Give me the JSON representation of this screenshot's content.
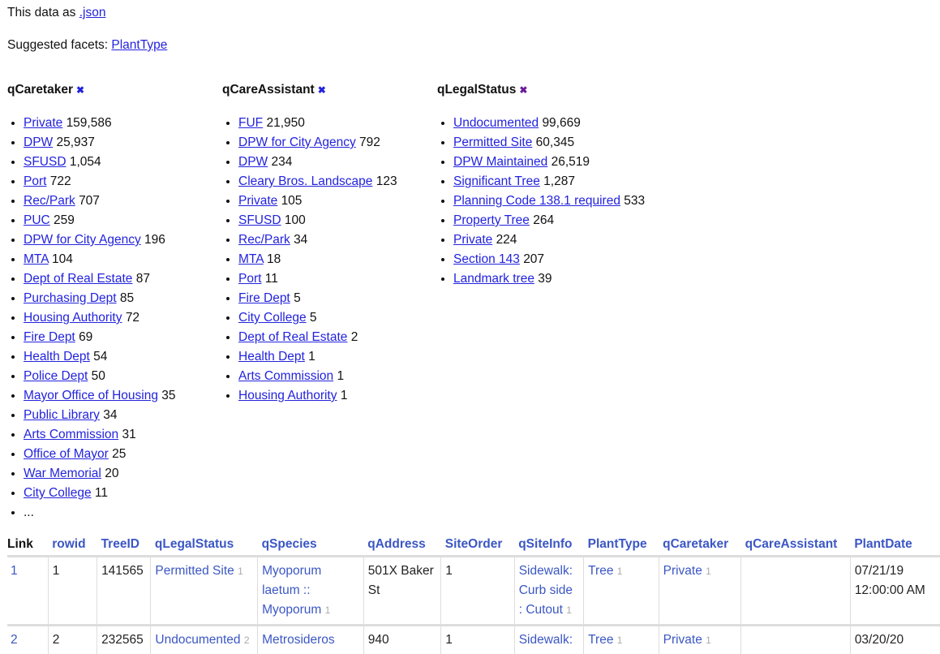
{
  "header": {
    "json_prefix": "This data as ",
    "json_link": ".json",
    "facets_prefix": "Suggested facets: ",
    "facet_link": "PlantType"
  },
  "facets": [
    {
      "title": "qCaretaker",
      "close_color": "#2323dd",
      "items": [
        [
          "Private",
          "159,586"
        ],
        [
          "DPW",
          "25,937"
        ],
        [
          "SFUSD",
          "1,054"
        ],
        [
          "Port",
          "722"
        ],
        [
          "Rec/Park",
          "707"
        ],
        [
          "PUC",
          "259"
        ],
        [
          "DPW for City Agency",
          "196"
        ],
        [
          "MTA",
          "104"
        ],
        [
          "Dept of Real Estate",
          "87"
        ],
        [
          "Purchasing Dept",
          "85"
        ],
        [
          "Housing Authority",
          "72"
        ],
        [
          "Fire Dept",
          "69"
        ],
        [
          "Health Dept",
          "54"
        ],
        [
          "Police Dept",
          "50"
        ],
        [
          "Mayor Office of Housing",
          "35"
        ],
        [
          "Public Library",
          "34"
        ],
        [
          "Arts Commission",
          "31"
        ],
        [
          "Office of Mayor",
          "25"
        ],
        [
          "War Memorial",
          "20"
        ],
        [
          "City College",
          "11"
        ]
      ],
      "more": "..."
    },
    {
      "title": "qCareAssistant",
      "close_color": "#2323dd",
      "items": [
        [
          "FUF",
          "21,950"
        ],
        [
          "DPW for City Agency",
          "792"
        ],
        [
          "DPW",
          "234"
        ],
        [
          "Cleary Bros. Landscape",
          "123"
        ],
        [
          "Private",
          "105"
        ],
        [
          "SFUSD",
          "100"
        ],
        [
          "Rec/Park",
          "34"
        ],
        [
          "MTA",
          "18"
        ],
        [
          "Port",
          "11"
        ],
        [
          "Fire Dept",
          "5"
        ],
        [
          "City College",
          "5"
        ],
        [
          "Dept of Real Estate",
          "2"
        ],
        [
          "Health Dept",
          "1"
        ],
        [
          "Arts Commission",
          "1"
        ],
        [
          "Housing Authority",
          "1"
        ]
      ]
    },
    {
      "title": "qLegalStatus",
      "close_color": "#6a1b9a",
      "items": [
        [
          "Undocumented",
          "99,669"
        ],
        [
          "Permitted Site",
          "60,345"
        ],
        [
          "DPW Maintained",
          "26,519"
        ],
        [
          "Significant Tree",
          "1,287"
        ],
        [
          "Planning Code 138.1 required",
          "533"
        ],
        [
          "Property Tree",
          "264"
        ],
        [
          "Private",
          "224"
        ],
        [
          "Section 143",
          "207"
        ],
        [
          "Landmark tree",
          "39"
        ]
      ]
    }
  ],
  "table": {
    "columns": [
      "Link",
      "rowid",
      "TreeID",
      "qLegalStatus",
      "qSpecies",
      "qAddress",
      "SiteOrder",
      "qSiteInfo",
      "PlantType",
      "qCaretaker",
      "qCareAssistant",
      "PlantDate"
    ],
    "rows": [
      {
        "link": "1",
        "rowid": "1",
        "treeid": "141565",
        "legal": "Permitted Site",
        "legal_n": "1",
        "species": "Myoporum laetum :: Myoporum",
        "species_n": "1",
        "address": "501X Baker St",
        "siteorder": "1",
        "siteinfo": "Sidewalk: Curb side : Cutout",
        "siteinfo_n": "1",
        "planttype": "Tree",
        "planttype_n": "1",
        "caretaker": "Private",
        "caretaker_n": "1",
        "assistant": "",
        "plantdate": "07/21/19 12:00:00 AM"
      },
      {
        "link": "2",
        "rowid": "2",
        "treeid": "232565",
        "legal": "Undocumented",
        "legal_n": "2",
        "species": "Metrosideros",
        "species_n": "",
        "address": "940",
        "siteorder": "1",
        "siteinfo": "Sidewalk:",
        "siteinfo_n": "",
        "planttype": "Tree",
        "planttype_n": "1",
        "caretaker": "Private",
        "caretaker_n": "1",
        "assistant": "",
        "plantdate": "03/20/20"
      }
    ]
  }
}
